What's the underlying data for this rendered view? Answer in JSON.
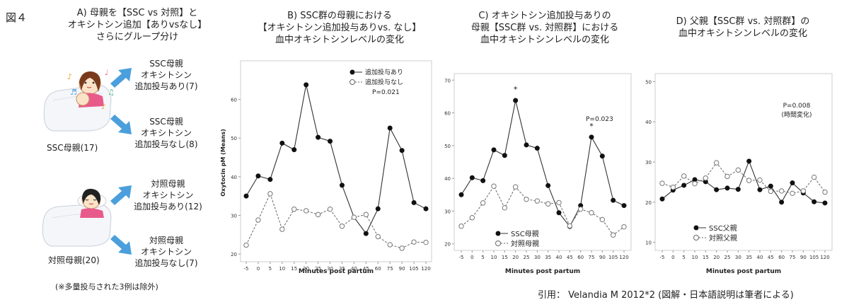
{
  "figure_label": "図４",
  "citation": "引用： Velandia M 2012*2 (図解・日本語説明は筆者による)",
  "panel_a": {
    "title": "A) 母親を【SSC vs 対照】と\nオキシトシン追加【ありvsなし】\nさらにグループ分け",
    "ssc_mother_label": "SSC母親(17)",
    "control_mother_label": "対照母親(20)",
    "groups": [
      "SSC母親\nオキシトシン\n追加投与あり(7)",
      "SSC母親\nオキシトシン\n追加投与なし(8)",
      "対照母親\nオキシトシン\n追加投与あり(12)",
      "対照母親\nオキシトシン\n追加投与なし(7)"
    ],
    "footnote": "(※多量投与された3例は除外)",
    "colors": {
      "arrow": "#4a9fdc"
    }
  },
  "panel_titles": {
    "b": "B) SSC群の母親における\n【オキシトシン追加投与ありvs. なし】\n血中オキシトシンレベルの変化",
    "c": "C) オキシトシン追加投与ありの\n母親【SSC群 vs. 対照群】における\n血中オキシトシンレベルの変化",
    "d": "D) 父親【SSC群 vs. 対照群】の\n血中オキシトシンレベルの変化"
  },
  "chart_data": [
    {
      "type": "line",
      "categories": [
        "-5",
        "0",
        "5",
        "10",
        "15",
        "20",
        "25",
        "30",
        "35",
        "40",
        "45",
        "60",
        "75",
        "90",
        "105",
        "120"
      ],
      "ylabel": "Oxytocin pM (Means)",
      "xlabel": "Minutes post partum",
      "ylim": [
        18,
        70
      ],
      "yticks": [
        20,
        30,
        40,
        50,
        60
      ],
      "series": [
        {
          "name": "追加投与あり",
          "style": "solid",
          "marker": "filled",
          "values": [
            35,
            40.2,
            39.3,
            48.7,
            47,
            63.8,
            50.2,
            49.2,
            37.8,
            29.5,
            25.3,
            31.7,
            52.6,
            46.8,
            33.3,
            31.7
          ]
        },
        {
          "name": "追加投与なし",
          "style": "dashed",
          "marker": "open",
          "values": [
            22.3,
            28.8,
            35.6,
            26.4,
            31.6,
            31.2,
            30.2,
            31.6,
            27.2,
            29.5,
            30.2,
            24.5,
            22.4,
            21.5,
            23.1,
            23
          ]
        }
      ],
      "annotations": [
        "P=0.021"
      ],
      "legend": "top-right"
    },
    {
      "type": "line",
      "categories": [
        "-5",
        "0",
        "5",
        "10",
        "15",
        "20",
        "25",
        "30",
        "35",
        "40",
        "45",
        "60",
        "75",
        "90",
        "105",
        "120"
      ],
      "xlabel": "Minutes post partum",
      "ylim": [
        18,
        72
      ],
      "yticks": [
        20,
        30,
        40,
        50,
        60,
        70
      ],
      "series": [
        {
          "name": "SSC母親",
          "style": "solid",
          "marker": "filled",
          "values": [
            35,
            40.2,
            39.3,
            48.7,
            47,
            63.8,
            50.2,
            49.2,
            37.8,
            29.5,
            25.3,
            31.7,
            52.6,
            46.8,
            33.3,
            31.7
          ]
        },
        {
          "name": "対照母親",
          "style": "dashed",
          "marker": "open",
          "values": [
            25.4,
            28,
            32.5,
            37.6,
            31,
            37.4,
            33.6,
            33.1,
            32.2,
            32.6,
            25.5,
            30.6,
            29.5,
            27.4,
            22.7,
            25.2
          ]
        }
      ],
      "annotations": [
        "P=0.023"
      ],
      "significance_marks": [
        {
          "category": "20",
          "label": "*"
        },
        {
          "category": "75",
          "label": "*"
        }
      ],
      "legend": "bottom-left"
    },
    {
      "type": "line",
      "categories": [
        "-5",
        "0",
        "5",
        "10",
        "15",
        "20",
        "25",
        "30",
        "35",
        "40",
        "45",
        "60",
        "75",
        "90",
        "105",
        "120"
      ],
      "xlabel": "Minutes post partum",
      "ylim": [
        8,
        52
      ],
      "yticks": [
        10,
        20,
        30,
        40,
        50
      ],
      "series": [
        {
          "name": "SSC父親",
          "style": "solid",
          "marker": "filled",
          "values": [
            20.8,
            23,
            24.2,
            25.6,
            25.1,
            23.1,
            23.5,
            23.2,
            30.2,
            23.1,
            24,
            20,
            24.8,
            22.3,
            20.1,
            19.8
          ]
        },
        {
          "name": "対照父親",
          "style": "dashed",
          "marker": "open",
          "values": [
            24.7,
            23.7,
            26.5,
            24.6,
            26,
            29.8,
            26.4,
            28,
            25.4,
            25.5,
            22.7,
            22.8,
            22.2,
            22.8,
            26.2,
            22.5
          ]
        }
      ],
      "annotations": [
        "P=0.008",
        "(時間変化)"
      ],
      "legend": "bottom-left"
    }
  ]
}
